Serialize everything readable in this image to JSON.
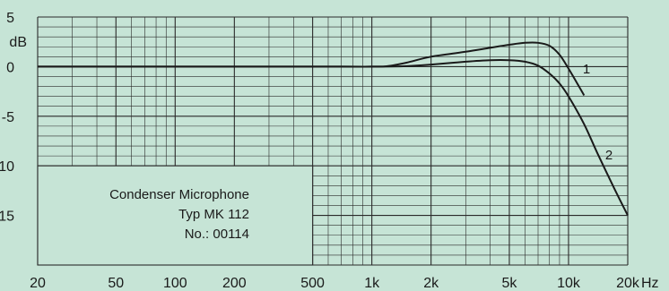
{
  "chart_data": {
    "type": "line",
    "x_scale": "log",
    "x_unit": "Hz",
    "y_unit": "dB",
    "xlim": [
      20,
      20000
    ],
    "ylim": [
      -20,
      5
    ],
    "x_ticks": [
      {
        "value": 20,
        "label": "20"
      },
      {
        "value": 50,
        "label": "50"
      },
      {
        "value": 100,
        "label": "100"
      },
      {
        "value": 200,
        "label": "200"
      },
      {
        "value": 500,
        "label": "500"
      },
      {
        "value": 1000,
        "label": "1k"
      },
      {
        "value": 2000,
        "label": "2k"
      },
      {
        "value": 5000,
        "label": "5k"
      },
      {
        "value": 10000,
        "label": "10k"
      },
      {
        "value": 20000,
        "label": "20k"
      }
    ],
    "y_ticks": [
      {
        "value": 5,
        "label": "5"
      },
      {
        "value": 0,
        "label": "0"
      },
      {
        "value": -5,
        "label": "-5"
      },
      {
        "value": -10,
        "label": "-10"
      },
      {
        "value": -15,
        "label": "-15"
      }
    ],
    "grid": true,
    "series": [
      {
        "name": "1",
        "x": [
          20,
          500,
          1000,
          1200,
          1500,
          2000,
          3000,
          4000,
          5000,
          6000,
          7000,
          8000,
          9000,
          10000,
          11000,
          12000
        ],
        "y": [
          0,
          0,
          0,
          0.05,
          0.4,
          1.0,
          1.5,
          1.9,
          2.2,
          2.4,
          2.4,
          2.1,
          1.2,
          -0.2,
          -1.6,
          -2.9
        ]
      },
      {
        "name": "2",
        "x": [
          20,
          500,
          1000,
          1500,
          2000,
          3000,
          4000,
          5000,
          6000,
          7000,
          8000,
          9000,
          10000,
          12000,
          14000,
          17000,
          20000
        ],
        "y": [
          0,
          0,
          0,
          0.05,
          0.2,
          0.5,
          0.65,
          0.65,
          0.5,
          0.1,
          -0.7,
          -1.7,
          -3.0,
          -5.8,
          -8.7,
          -12.2,
          -15.0
        ]
      }
    ],
    "info_box": [
      "Condenser Microphone",
      "Typ MK 112",
      "No.: 00114"
    ]
  },
  "colors": {
    "background": "#c6e4d6",
    "grid": "#2a2a2a",
    "curve": "#1a1a1a",
    "box_fill": "#c6e4d6"
  }
}
